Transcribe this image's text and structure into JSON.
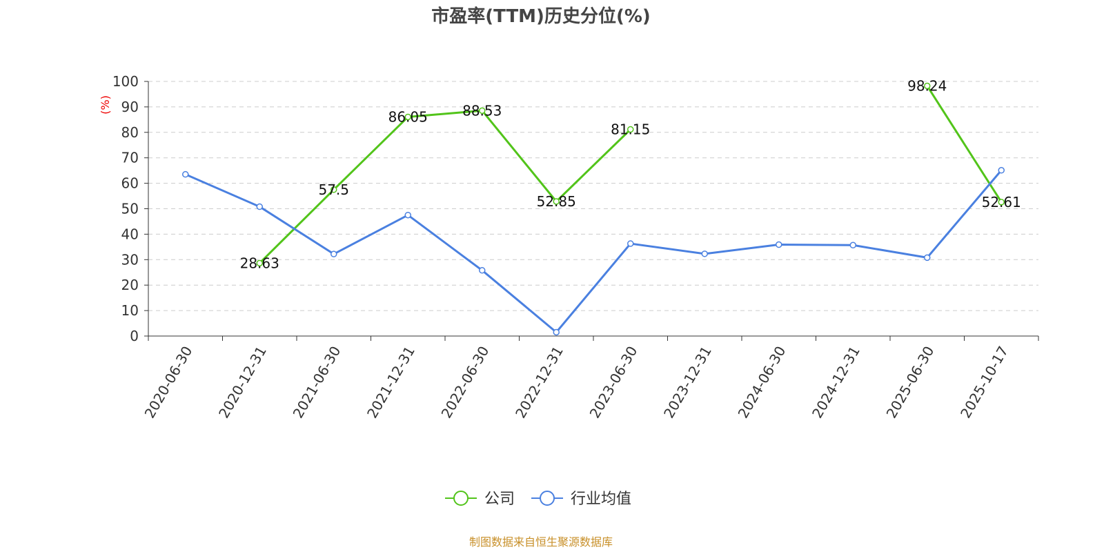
{
  "chart_data": {
    "type": "line",
    "title": "市盈率(TTM)历史分位(%)",
    "y_label": "(%)",
    "source": "制图数据来自恒生聚源数据库",
    "categories": [
      "2020-06-30",
      "2020-12-31",
      "2021-06-30",
      "2021-12-31",
      "2022-06-30",
      "2022-12-31",
      "2023-06-30",
      "2023-12-31",
      "2024-06-30",
      "2024-12-31",
      "2025-06-30",
      "2025-10-17"
    ],
    "series": [
      {
        "name": "公司",
        "color": "#52c41a",
        "show_labels": true,
        "values": [
          null,
          28.63,
          57.5,
          86.05,
          88.53,
          52.85,
          81.15,
          null,
          null,
          null,
          98.24,
          52.61
        ]
      },
      {
        "name": "行业均值",
        "color": "#4a80e0",
        "show_labels": false,
        "values": [
          63.5,
          50.8,
          32.2,
          47.5,
          25.8,
          1.5,
          36.3,
          32.3,
          35.9,
          35.7,
          30.8,
          65.1
        ]
      }
    ],
    "ylim": [
      0,
      100
    ],
    "yticks": [
      0,
      10,
      20,
      30,
      40,
      50,
      60,
      70,
      80,
      90,
      100
    ],
    "grid": true,
    "legend": "bottom"
  }
}
